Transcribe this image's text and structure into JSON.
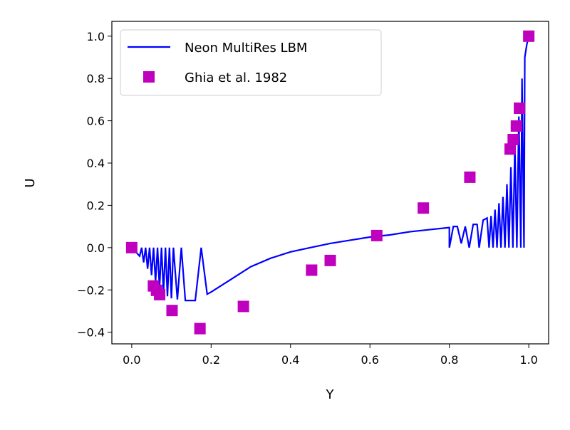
{
  "chart_data": {
    "type": "line",
    "xlabel": "Y",
    "ylabel": "U",
    "xlim": [
      -0.05,
      1.05
    ],
    "ylim": [
      -0.455,
      1.07
    ],
    "xticks": [
      {
        "value": 0,
        "label": "0.0"
      },
      {
        "value": 0.2,
        "label": "0.2"
      },
      {
        "value": 0.4,
        "label": "0.4"
      },
      {
        "value": 0.6,
        "label": "0.6"
      },
      {
        "value": 0.8,
        "label": "0.8"
      },
      {
        "value": 1,
        "label": "1.0"
      }
    ],
    "yticks": [
      {
        "value": -0.4,
        "label": "−0.4"
      },
      {
        "value": -0.2,
        "label": "−0.2"
      },
      {
        "value": 0,
        "label": "0.0"
      },
      {
        "value": 0.2,
        "label": "0.2"
      },
      {
        "value": 0.4,
        "label": "0.4"
      },
      {
        "value": 0.6,
        "label": "0.6"
      },
      {
        "value": 0.8,
        "label": "0.8"
      },
      {
        "value": 1,
        "label": "1.0"
      }
    ],
    "legend": "upper left",
    "series": [
      {
        "name": "Neon MultiRes LBM",
        "color": "#0000ff",
        "type": "line",
        "x": [
          0.0,
          0.01,
          0.02,
          0.025,
          0.03,
          0.035,
          0.04,
          0.045,
          0.05,
          0.055,
          0.06,
          0.065,
          0.07,
          0.075,
          0.08,
          0.085,
          0.09,
          0.095,
          0.1,
          0.105,
          0.115,
          0.125,
          0.135,
          0.15,
          0.16,
          0.175,
          0.19,
          0.2,
          0.25,
          0.3,
          0.35,
          0.4,
          0.45,
          0.5,
          0.55,
          0.6,
          0.65,
          0.7,
          0.75,
          0.8,
          0.8,
          0.81,
          0.82,
          0.83,
          0.84,
          0.85,
          0.86,
          0.87,
          0.875,
          0.885,
          0.895,
          0.9,
          0.905,
          0.91,
          0.915,
          0.92,
          0.925,
          0.93,
          0.935,
          0.94,
          0.945,
          0.95,
          0.955,
          0.96,
          0.965,
          0.97,
          0.975,
          0.98,
          0.983,
          0.988,
          0.99,
          0.995,
          1.0
        ],
        "values": [
          0,
          -0.02,
          -0.04,
          0,
          -0.07,
          0,
          -0.1,
          0,
          -0.13,
          0,
          -0.16,
          0,
          -0.19,
          0,
          -0.21,
          0,
          -0.23,
          0,
          -0.24,
          0,
          -0.245,
          0,
          -0.25,
          -0.25,
          -0.25,
          0,
          -0.22,
          -0.21,
          -0.15,
          -0.09,
          -0.05,
          -0.02,
          0.0,
          0.02,
          0.035,
          0.05,
          0.06,
          0.075,
          0.085,
          0.095,
          0,
          0.1,
          0.1,
          0.02,
          0.1,
          0,
          0.11,
          0.11,
          0,
          0.13,
          0.14,
          0,
          0.15,
          0,
          0.18,
          0,
          0.21,
          0,
          0.24,
          0,
          0.3,
          0,
          0.38,
          0,
          0.48,
          0,
          0.62,
          0,
          0.8,
          0,
          0.9,
          0.96,
          1.0
        ]
      },
      {
        "name": "Ghia et al. 1982",
        "color": "#bf00bf",
        "type": "scatter",
        "x": [
          0,
          0.0547,
          0.0625,
          0.0703,
          0.1016,
          0.1719,
          0.2813,
          0.4531,
          0.5,
          0.6172,
          0.7344,
          0.8516,
          0.9531,
          0.9609,
          0.9688,
          0.9766,
          1.0
        ],
        "values": [
          0,
          -0.18109,
          -0.20196,
          -0.2222,
          -0.2973,
          -0.38289,
          -0.27805,
          -0.10648,
          -0.0608,
          0.05702,
          0.18719,
          0.33304,
          0.46604,
          0.51117,
          0.57492,
          0.65928,
          1.0
        ]
      }
    ]
  }
}
